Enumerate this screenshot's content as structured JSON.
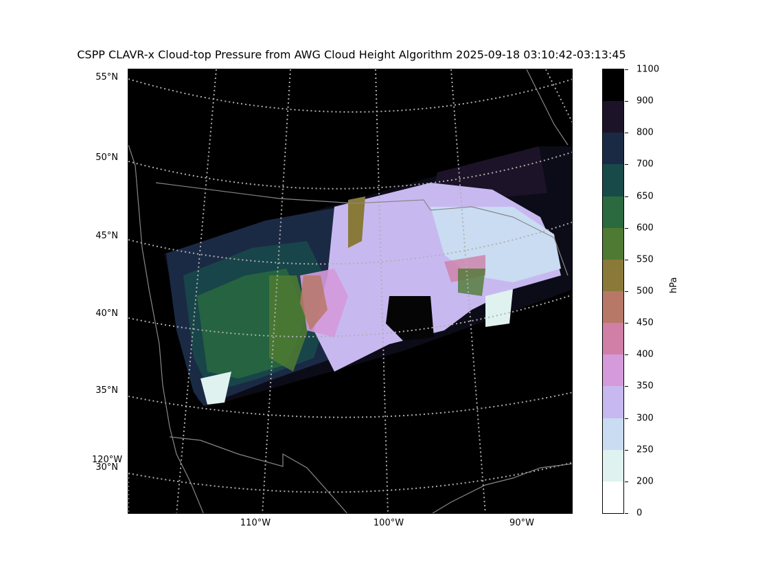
{
  "title": "CSPP CLAVR-x Cloud-top Pressure from AWG Cloud Height Algorithm 2025-09-18 03:10:42-03:13:45",
  "map": {
    "background": "#000000",
    "gridline_color": "#b0b0b0",
    "boundary_color": "#888888",
    "lat_labels": [
      "55°N",
      "50°N",
      "45°N",
      "40°N",
      "35°N",
      "30°N"
    ],
    "lon_labels": [
      "120°W",
      "110°W",
      "100°W",
      "90°W"
    ],
    "cloud_field_colors": [
      "#1b2a44",
      "#184a4a",
      "#2b6a3e",
      "#4f7a33",
      "#8a7a3a",
      "#b87868",
      "#d07fa6",
      "#d49ada",
      "#c8b8f0",
      "#c9dcf2",
      "#dff2ef"
    ]
  },
  "colorbar": {
    "unit": "hPa",
    "tick_labels": [
      "0",
      "200",
      "250",
      "300",
      "350",
      "400",
      "450",
      "500",
      "550",
      "600",
      "650",
      "700",
      "800",
      "900",
      "1100"
    ],
    "segments": [
      {
        "from": 0,
        "to": 200,
        "color": "#ffffff"
      },
      {
        "from": 200,
        "to": 250,
        "color": "#dff2ef"
      },
      {
        "from": 250,
        "to": 300,
        "color": "#c9dcf2"
      },
      {
        "from": 300,
        "to": 350,
        "color": "#c8b8f0"
      },
      {
        "from": 350,
        "to": 400,
        "color": "#d49ada"
      },
      {
        "from": 400,
        "to": 450,
        "color": "#d07fa6"
      },
      {
        "from": 450,
        "to": 500,
        "color": "#b87868"
      },
      {
        "from": 500,
        "to": 550,
        "color": "#8a7a3a"
      },
      {
        "from": 550,
        "to": 600,
        "color": "#4f7a33"
      },
      {
        "from": 600,
        "to": 650,
        "color": "#2b6a3e"
      },
      {
        "from": 650,
        "to": 700,
        "color": "#184a4a"
      },
      {
        "from": 700,
        "to": 800,
        "color": "#1b2a44"
      },
      {
        "from": 800,
        "to": 900,
        "color": "#1d1328"
      },
      {
        "from": 900,
        "to": 1100,
        "color": "#000000"
      }
    ]
  }
}
